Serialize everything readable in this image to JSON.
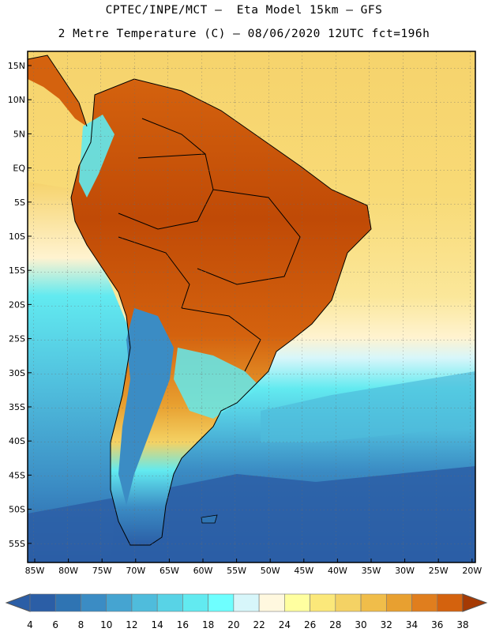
{
  "header": {
    "line1": "CPTEC/INPE/MCT –  Eta Model 15km – GFS",
    "line2": "2 Metre Temperature (C) – 08/06/2020 12UTC fct=196h"
  },
  "map": {
    "lat_labels": [
      "15N",
      "10N",
      "5N",
      "EQ",
      "5S",
      "10S",
      "15S",
      "20S",
      "25S",
      "30S",
      "35S",
      "40S",
      "45S",
      "50S",
      "55S"
    ],
    "lon_labels": [
      "85W",
      "80W",
      "75W",
      "70W",
      "65W",
      "60W",
      "55W",
      "50W",
      "45W",
      "40W",
      "35W",
      "30W",
      "25W",
      "20W"
    ]
  },
  "colorbar": {
    "labels": [
      "4",
      "6",
      "8",
      "10",
      "12",
      "14",
      "16",
      "18",
      "20",
      "22",
      "24",
      "26",
      "28",
      "30",
      "32",
      "34",
      "36",
      "38"
    ],
    "colors": [
      "#2b5ea6",
      "#2f74b3",
      "#3b8cc4",
      "#45a4d1",
      "#4fbcdc",
      "#58d3e6",
      "#62eaf0",
      "#6effff",
      "#d7f6fa",
      "#fff8df",
      "#ffffa0",
      "#fbe87a",
      "#f4d264",
      "#f0bd4a",
      "#e8a030",
      "#e07e1e",
      "#d4620e",
      "#c04a06",
      "#a53a04"
    ]
  },
  "palette": {
    "ocean_deep": "#2b5ea6",
    "ocean_mid": "#45a4d1",
    "ocean_light": "#62eaf0",
    "warm_ocean": "#f4d264",
    "land_hot": "#c04a06"
  }
}
